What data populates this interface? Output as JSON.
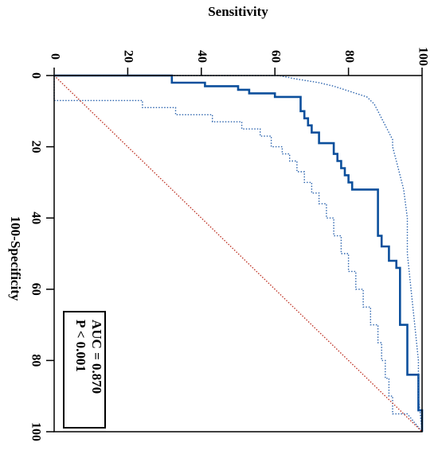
{
  "chart_data": {
    "type": "line",
    "title": "",
    "xlabel": "100-Specificity",
    "ylabel": "Sensitivity",
    "xlim": [
      0,
      100
    ],
    "ylim": [
      0,
      100
    ],
    "xticks": [
      0,
      20,
      40,
      60,
      80,
      100
    ],
    "yticks": [
      0,
      20,
      40,
      60,
      80,
      100
    ],
    "orientation": "rotated-90-clockwise",
    "grid": false,
    "colors": {
      "roc": "#0b4f9c",
      "ci": "#2c64ae",
      "reference": "#c0392b"
    },
    "series": [
      {
        "style": "solid",
        "color": "#0b4f9c",
        "x": [
          0,
          0,
          2,
          2,
          3,
          3,
          4,
          4,
          5,
          5,
          6,
          6,
          10,
          10,
          12,
          12,
          14,
          14,
          16,
          16,
          19,
          19,
          22,
          22,
          24,
          24,
          26,
          26,
          28,
          28,
          30,
          30,
          32,
          32,
          45,
          45,
          48,
          48,
          52,
          52,
          54,
          54,
          70,
          70,
          84,
          84,
          94,
          94,
          100
        ],
        "y": [
          0,
          32,
          32,
          41,
          41,
          50,
          50,
          53,
          53,
          60,
          60,
          67,
          67,
          68,
          68,
          69,
          69,
          70,
          70,
          72,
          72,
          76,
          76,
          77,
          77,
          78,
          78,
          79,
          79,
          80,
          80,
          81,
          81,
          88,
          88,
          89,
          89,
          91,
          91,
          93,
          93,
          94,
          94,
          96,
          96,
          99,
          99,
          100,
          100
        ]
      },
      {
        "style": "dotted",
        "color": "#2c64ae",
        "x": [
          0,
          0,
          1,
          2,
          3,
          4,
          5,
          6,
          8,
          10,
          12,
          14,
          16,
          18,
          20,
          24,
          28,
          32,
          40,
          50,
          60,
          70,
          80,
          90,
          100
        ],
        "y": [
          0,
          61,
          66,
          72,
          76,
          79,
          82,
          85,
          87,
          88,
          89,
          90,
          91,
          92,
          92,
          93,
          94,
          95,
          96,
          96,
          97,
          98,
          99,
          99,
          100
        ]
      },
      {
        "style": "dotted",
        "color": "#2c64ae",
        "x": [
          0,
          7,
          7,
          9,
          9,
          11,
          11,
          13,
          13,
          15,
          15,
          17,
          17,
          20,
          20,
          22,
          22,
          24,
          24,
          27,
          27,
          30,
          30,
          33,
          33,
          36,
          36,
          40,
          40,
          45,
          45,
          50,
          50,
          55,
          55,
          60,
          60,
          65,
          65,
          70,
          70,
          75,
          75,
          80,
          80,
          85,
          85,
          90,
          90,
          95,
          95,
          100
        ],
        "y": [
          0,
          0,
          24,
          24,
          33,
          33,
          43,
          43,
          51,
          51,
          56,
          56,
          59,
          59,
          62,
          62,
          64,
          64,
          66,
          66,
          68,
          68,
          70,
          70,
          72,
          72,
          74,
          74,
          76,
          76,
          78,
          78,
          80,
          80,
          82,
          82,
          84,
          84,
          86,
          86,
          88,
          88,
          89,
          89,
          90,
          90,
          91,
          91,
          92,
          92,
          96,
          100
        ]
      },
      {
        "style": "dotted",
        "color": "#c0392b",
        "x": [
          0,
          100
        ],
        "y": [
          0,
          100
        ]
      }
    ],
    "annotations": {
      "line1": "AUC = 0.870",
      "line2": "P < 0.001"
    }
  }
}
